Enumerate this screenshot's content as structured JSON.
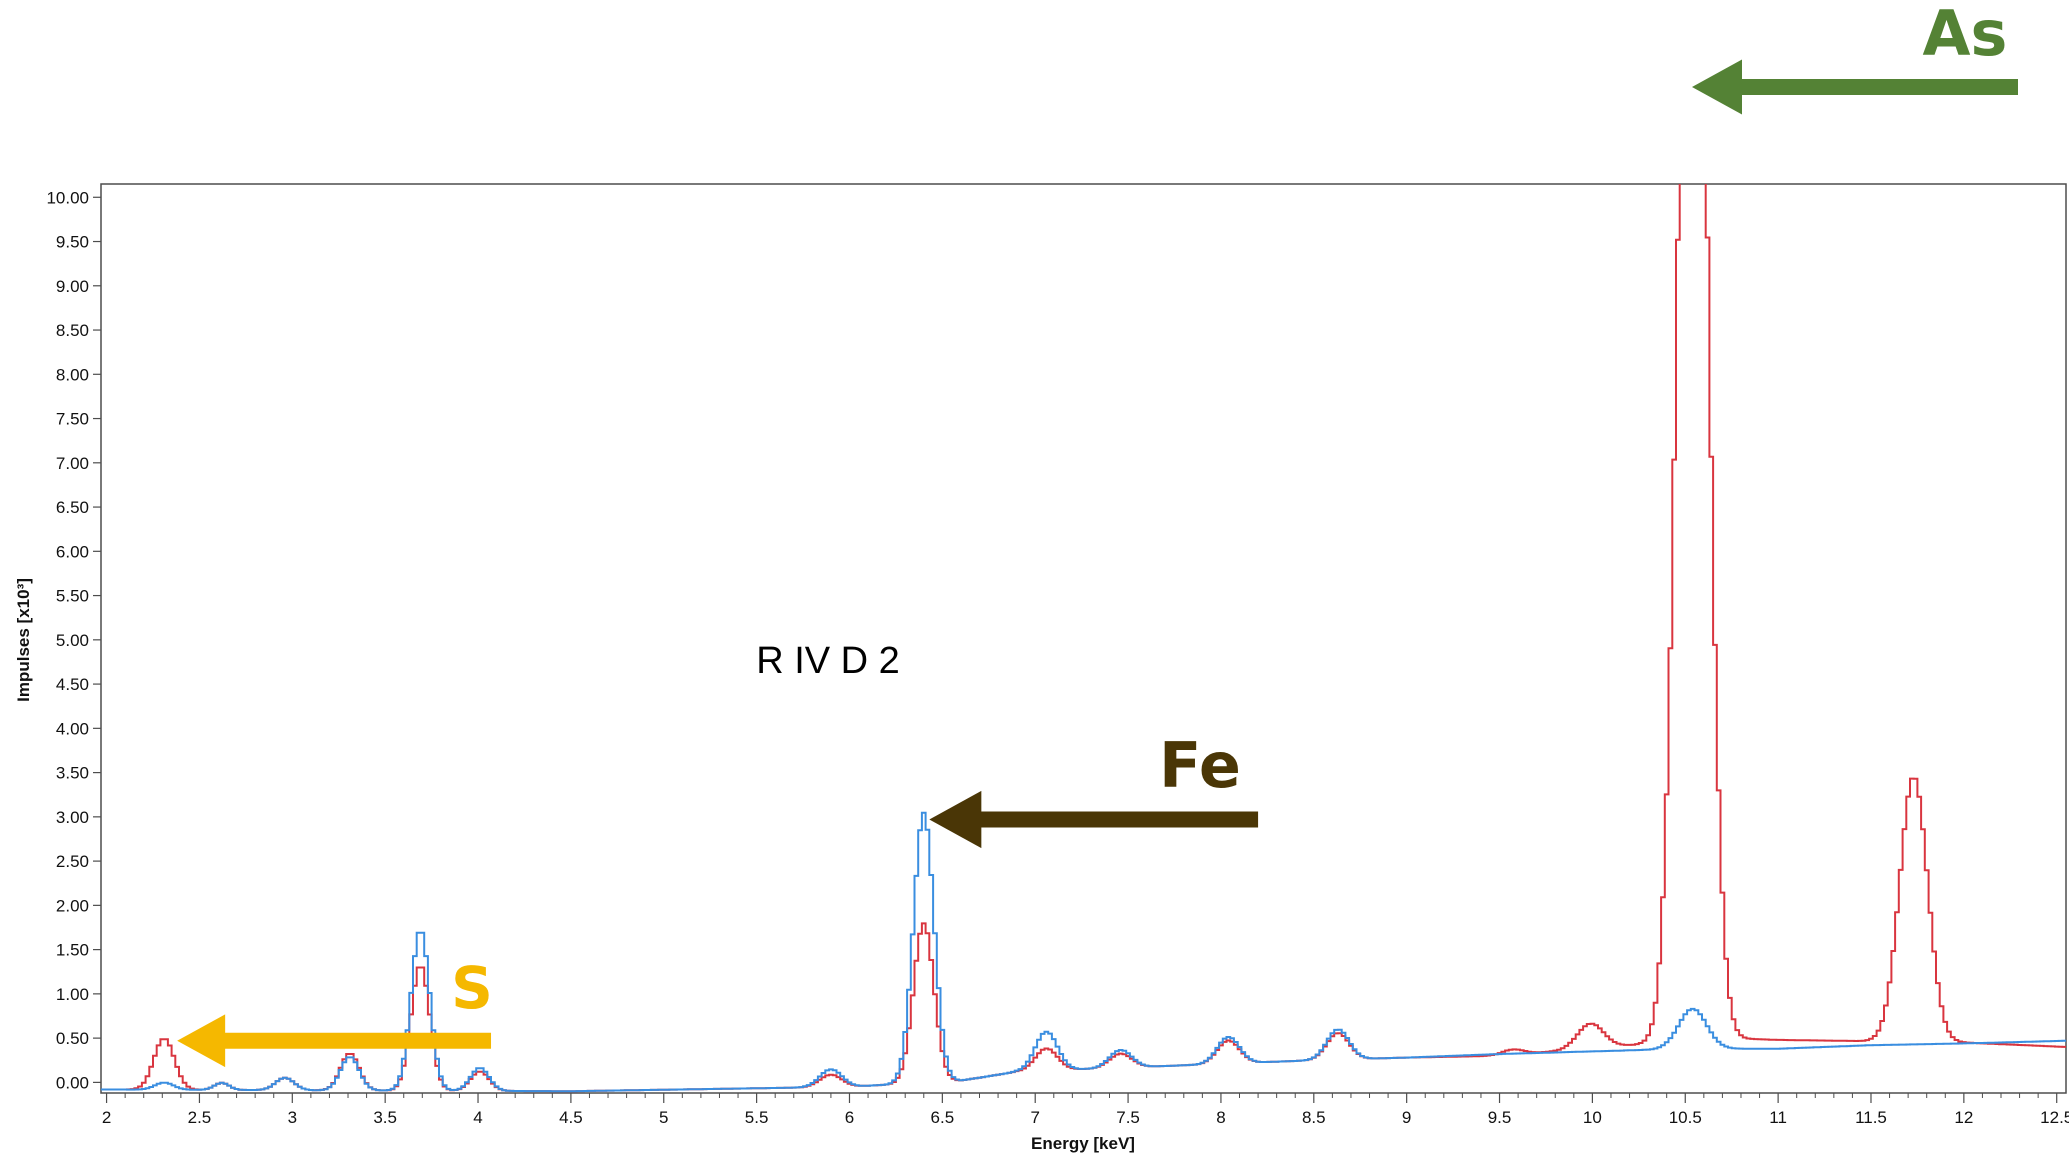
{
  "chart_data": {
    "type": "line",
    "xlabel": "Energy [keV]",
    "ylabel": "Impulses [x10³]",
    "xlim": [
      1.97,
      12.55
    ],
    "ylim": [
      -0.12,
      10.15
    ],
    "x_ticks": [
      "2",
      "2.5",
      "3",
      "3.5",
      "4",
      "4.5",
      "5",
      "5.5",
      "6",
      "6.5",
      "7",
      "7.5",
      "8",
      "8.5",
      "9",
      "9.5",
      "10",
      "10.5",
      "11",
      "11.5",
      "12",
      "12.5"
    ],
    "y_ticks": [
      "0.00",
      "0.50",
      "1.00",
      "1.50",
      "2.00",
      "2.50",
      "3.00",
      "3.50",
      "4.00",
      "4.50",
      "5.00",
      "5.50",
      "6.00",
      "6.50",
      "7.00",
      "7.50",
      "8.00",
      "8.50",
      "9.00",
      "9.50",
      "10.00"
    ],
    "sample_label": "R IV D 2",
    "series": [
      {
        "color": "#d9353f",
        "baseline": [
          [
            1.97,
            -0.08
          ],
          [
            4.5,
            -0.1
          ],
          [
            6.0,
            -0.05
          ],
          [
            6.6,
            0.02
          ],
          [
            6.9,
            0.12
          ],
          [
            8.5,
            0.25
          ],
          [
            9.0,
            0.28
          ],
          [
            9.5,
            0.3
          ],
          [
            10.2,
            0.42
          ],
          [
            10.7,
            0.5
          ],
          [
            11.0,
            0.48
          ],
          [
            12.0,
            0.45
          ],
          [
            12.55,
            0.4
          ]
        ],
        "peaks": [
          {
            "x": 2.31,
            "h": 0.58,
            "w": 0.055
          },
          {
            "x": 2.62,
            "h": 0.08,
            "w": 0.04
          },
          {
            "x": 2.96,
            "h": 0.14,
            "w": 0.05
          },
          {
            "x": 3.31,
            "h": 0.42,
            "w": 0.05
          },
          {
            "x": 3.69,
            "h": 1.42,
            "w": 0.05
          },
          {
            "x": 4.01,
            "h": 0.22,
            "w": 0.05
          },
          {
            "x": 5.9,
            "h": 0.14,
            "w": 0.06
          },
          {
            "x": 6.4,
            "h": 1.8,
            "w": 0.055
          },
          {
            "x": 7.06,
            "h": 0.25,
            "w": 0.06
          },
          {
            "x": 7.46,
            "h": 0.16,
            "w": 0.06
          },
          {
            "x": 8.04,
            "h": 0.26,
            "w": 0.06
          },
          {
            "x": 8.63,
            "h": 0.3,
            "w": 0.06
          },
          {
            "x": 9.57,
            "h": 0.06,
            "w": 0.06
          },
          {
            "x": 9.99,
            "h": 0.28,
            "w": 0.07
          },
          {
            "x": 10.54,
            "h": 16.0,
            "w": 0.075
          },
          {
            "x": 11.73,
            "h": 3.0,
            "w": 0.075
          }
        ]
      },
      {
        "color": "#3a8ee0",
        "baseline": [
          [
            1.97,
            -0.08
          ],
          [
            4.5,
            -0.1
          ],
          [
            6.0,
            -0.05
          ],
          [
            6.6,
            0.02
          ],
          [
            6.9,
            0.12
          ],
          [
            8.5,
            0.25
          ],
          [
            9.0,
            0.28
          ],
          [
            9.5,
            0.32
          ],
          [
            10.0,
            0.35
          ],
          [
            10.5,
            0.38
          ],
          [
            11.0,
            0.38
          ],
          [
            11.5,
            0.42
          ],
          [
            12.0,
            0.44
          ],
          [
            12.55,
            0.47
          ]
        ],
        "peaks": [
          {
            "x": 2.31,
            "h": 0.08,
            "w": 0.05
          },
          {
            "x": 2.62,
            "h": 0.08,
            "w": 0.04
          },
          {
            "x": 2.96,
            "h": 0.14,
            "w": 0.05
          },
          {
            "x": 3.31,
            "h": 0.38,
            "w": 0.05
          },
          {
            "x": 3.69,
            "h": 1.82,
            "w": 0.05
          },
          {
            "x": 4.01,
            "h": 0.26,
            "w": 0.05
          },
          {
            "x": 5.9,
            "h": 0.2,
            "w": 0.06
          },
          {
            "x": 6.4,
            "h": 3.05,
            "w": 0.055
          },
          {
            "x": 7.06,
            "h": 0.44,
            "w": 0.06
          },
          {
            "x": 7.46,
            "h": 0.2,
            "w": 0.06
          },
          {
            "x": 8.04,
            "h": 0.3,
            "w": 0.06
          },
          {
            "x": 8.63,
            "h": 0.34,
            "w": 0.06
          },
          {
            "x": 10.54,
            "h": 0.45,
            "w": 0.075
          }
        ]
      }
    ]
  },
  "annotations": [
    {
      "id": "s",
      "label": "S",
      "color": "#f5b800",
      "tail_x": 4.07,
      "tail_y": 0.47,
      "tip_x": 2.38,
      "tip_y": 0.47
    },
    {
      "id": "fe",
      "label": "Fe",
      "color": "#4a3606",
      "tail_x": 8.2,
      "tail_y": 2.97,
      "tip_x": 6.43,
      "tip_y": 2.97
    },
    {
      "id": "as",
      "label": "As",
      "color": "#548235"
    }
  ]
}
